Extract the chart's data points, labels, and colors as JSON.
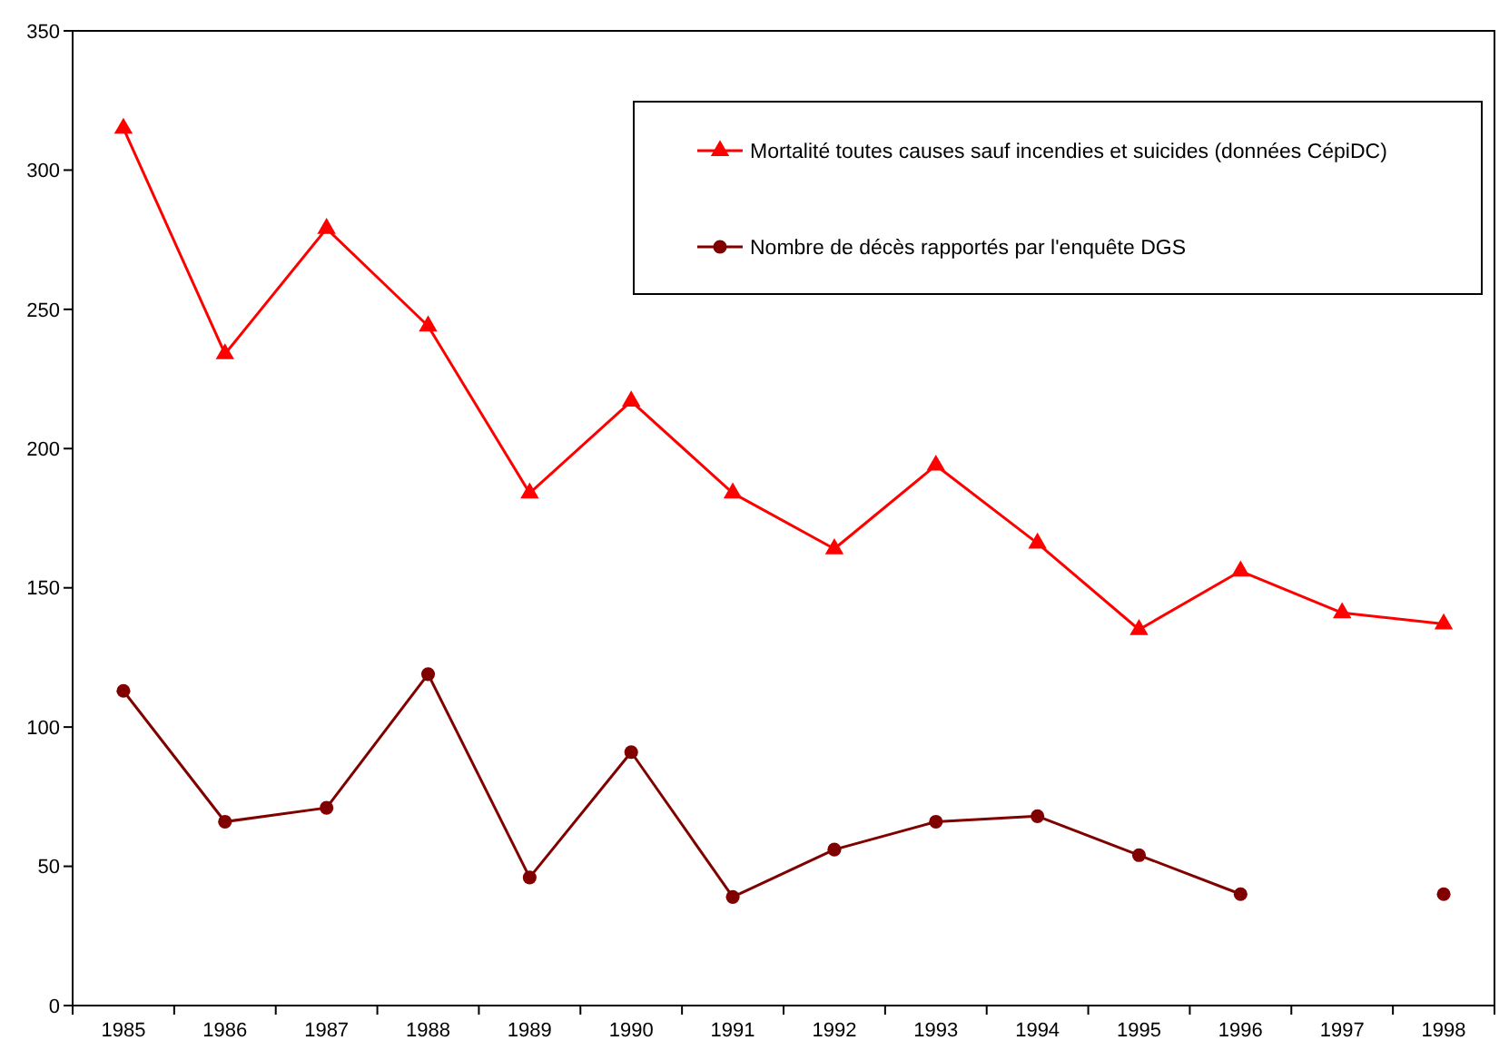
{
  "chart_data": {
    "type": "line",
    "categories": [
      "1985",
      "1986",
      "1987",
      "1988",
      "1989",
      "1990",
      "1991",
      "1992",
      "1993",
      "1994",
      "1995",
      "1996",
      "1997",
      "1998"
    ],
    "series": [
      {
        "name": "Mortalité toutes causes sauf incendies et suicides (données CépiDC)",
        "color": "#ff0000",
        "marker": "triangle",
        "values": [
          315,
          234,
          279,
          244,
          184,
          217,
          184,
          164,
          194,
          166,
          135,
          156,
          141,
          137
        ]
      },
      {
        "name": "Nombre de décès rapportés par l'enquête DGS",
        "color": "#800000",
        "marker": "circle",
        "values": [
          113,
          66,
          71,
          119,
          46,
          91,
          39,
          56,
          66,
          68,
          54,
          40,
          null,
          40
        ]
      }
    ],
    "ylim": [
      0,
      350
    ],
    "yticks": [
      0,
      50,
      100,
      150,
      200,
      250,
      300,
      350
    ],
    "grid": false,
    "legend": "top right",
    "line_style": "solid"
  }
}
